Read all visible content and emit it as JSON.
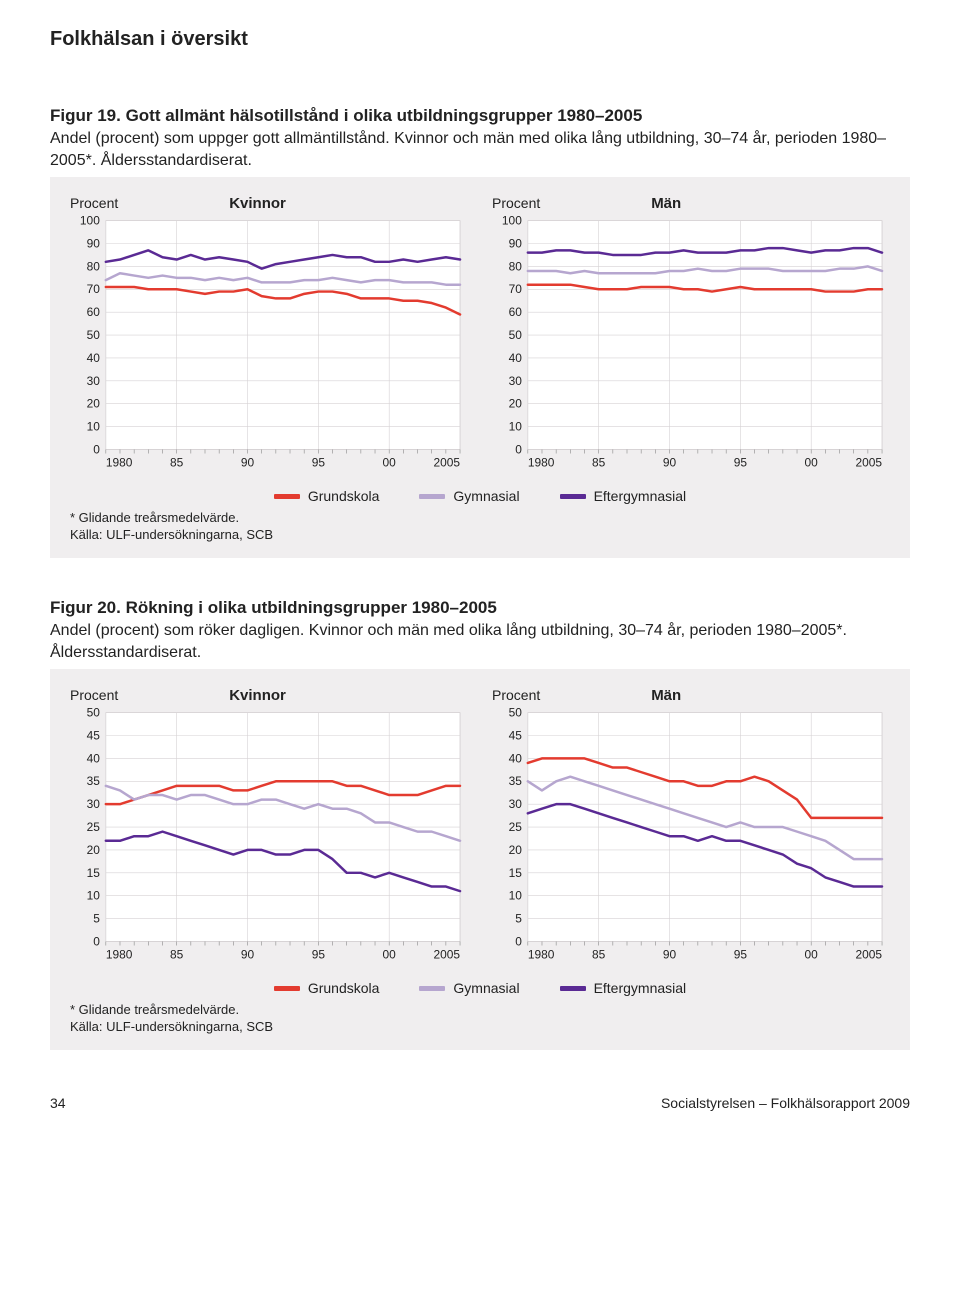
{
  "page": {
    "heading": "Folkhälsan i översikt",
    "footer_page": "34",
    "footer_source": "Socialstyrelsen – Folkhälsorapport 2009"
  },
  "colors": {
    "grundskola": "#e33b2f",
    "gymnasial": "#b6a6cf",
    "eftergymnasial": "#5a2a94",
    "grid": "#d6d2d4",
    "panel_bg": "#f0eeef",
    "plot_bg": "#ffffff",
    "text": "#222222"
  },
  "legend": {
    "items": [
      {
        "label": "Grundskola",
        "color_key": "grundskola"
      },
      {
        "label": "Gymnasial",
        "color_key": "gymnasial"
      },
      {
        "label": "Eftergymnasial",
        "color_key": "eftergymnasial"
      }
    ]
  },
  "figures": [
    {
      "id": "fig19",
      "title": "Figur 19. Gott allmänt hälsotillstånd i olika utbildningsgrupper 1980–2005",
      "desc": "Andel (procent) som uppger gott allmäntillstånd. Kvinnor och män med olika lång utbildning, 30–74 år, perioden 1980–2005*. Åldersstandardiserat.",
      "footnote": "* Glidande treårsmedelvärde.\nKälla: ULF-undersökningarna, SCB",
      "ylabel": "Procent",
      "ylim": [
        0,
        100
      ],
      "ytick_step": 10,
      "x_years": [
        1980,
        1981,
        1982,
        1983,
        1984,
        1985,
        1986,
        1987,
        1988,
        1989,
        1990,
        1991,
        1992,
        1993,
        1994,
        1995,
        1996,
        1997,
        1998,
        1999,
        2000,
        2001,
        2002,
        2003,
        2004,
        2005
      ],
      "x_major_labels": [
        "1980",
        "85",
        "90",
        "95",
        "00",
        "2005"
      ],
      "x_major_positions": [
        1980,
        1985,
        1990,
        1995,
        2000,
        2005
      ],
      "line_width": 2.5,
      "panels": [
        {
          "title": "Kvinnor",
          "series": {
            "grundskola": [
              71,
              71,
              71,
              70,
              70,
              70,
              69,
              68,
              69,
              69,
              70,
              67,
              66,
              66,
              68,
              69,
              69,
              68,
              66,
              66,
              66,
              65,
              65,
              64,
              62,
              59
            ],
            "gymnasial": [
              74,
              77,
              76,
              75,
              76,
              75,
              75,
              74,
              75,
              74,
              75,
              73,
              73,
              73,
              74,
              74,
              75,
              74,
              73,
              74,
              74,
              73,
              73,
              73,
              72,
              72
            ],
            "eftergymnasial": [
              82,
              83,
              85,
              87,
              84,
              83,
              85,
              83,
              84,
              83,
              82,
              79,
              81,
              82,
              83,
              84,
              85,
              84,
              84,
              82,
              82,
              83,
              82,
              83,
              84,
              83
            ]
          }
        },
        {
          "title": "Män",
          "series": {
            "grundskola": [
              72,
              72,
              72,
              72,
              71,
              70,
              70,
              70,
              71,
              71,
              71,
              70,
              70,
              69,
              70,
              71,
              70,
              70,
              70,
              70,
              70,
              69,
              69,
              69,
              70,
              70
            ],
            "gymnasial": [
              78,
              78,
              78,
              77,
              78,
              77,
              77,
              77,
              77,
              77,
              78,
              78,
              79,
              78,
              78,
              79,
              79,
              79,
              78,
              78,
              78,
              78,
              79,
              79,
              80,
              78
            ],
            "eftergymnasial": [
              86,
              86,
              87,
              87,
              86,
              86,
              85,
              85,
              85,
              86,
              86,
              87,
              86,
              86,
              86,
              87,
              87,
              88,
              88,
              87,
              86,
              87,
              87,
              88,
              88,
              86
            ]
          }
        }
      ]
    },
    {
      "id": "fig20",
      "title": "Figur 20. Rökning i olika utbildningsgrupper 1980–2005",
      "desc": "Andel (procent) som röker dagligen. Kvinnor och män  med olika lång utbildning, 30–74 år, perioden 1980–2005*. Åldersstandardiserat.",
      "footnote": "* Glidande treårsmedelvärde.\nKälla: ULF-undersökningarna, SCB",
      "ylabel": "Procent",
      "ylim": [
        0,
        50
      ],
      "ytick_step": 5,
      "x_years": [
        1980,
        1981,
        1982,
        1983,
        1984,
        1985,
        1986,
        1987,
        1988,
        1989,
        1990,
        1991,
        1992,
        1993,
        1994,
        1995,
        1996,
        1997,
        1998,
        1999,
        2000,
        2001,
        2002,
        2003,
        2004,
        2005
      ],
      "x_major_labels": [
        "1980",
        "85",
        "90",
        "95",
        "00",
        "2005"
      ],
      "x_major_positions": [
        1980,
        1985,
        1990,
        1995,
        2000,
        2005
      ],
      "line_width": 2.5,
      "panels": [
        {
          "title": "Kvinnor",
          "series": {
            "grundskola": [
              30,
              30,
              31,
              32,
              33,
              34,
              34,
              34,
              34,
              33,
              33,
              34,
              35,
              35,
              35,
              35,
              35,
              34,
              34,
              33,
              32,
              32,
              32,
              33,
              34,
              34
            ],
            "gymnasial": [
              34,
              33,
              31,
              32,
              32,
              31,
              32,
              32,
              31,
              30,
              30,
              31,
              31,
              30,
              29,
              30,
              29,
              29,
              28,
              26,
              26,
              25,
              24,
              24,
              23,
              22
            ],
            "eftergymnasial": [
              22,
              22,
              23,
              23,
              24,
              23,
              22,
              21,
              20,
              19,
              20,
              20,
              19,
              19,
              20,
              20,
              18,
              15,
              15,
              14,
              15,
              14,
              13,
              12,
              12,
              11
            ]
          }
        },
        {
          "title": "Män",
          "series": {
            "grundskola": [
              39,
              40,
              40,
              40,
              40,
              39,
              38,
              38,
              37,
              36,
              35,
              35,
              34,
              34,
              35,
              35,
              36,
              35,
              33,
              31,
              27,
              27,
              27,
              27,
              27,
              27
            ],
            "gymnasial": [
              35,
              33,
              35,
              36,
              35,
              34,
              33,
              32,
              31,
              30,
              29,
              28,
              27,
              26,
              25,
              26,
              25,
              25,
              25,
              24,
              23,
              22,
              20,
              18,
              18,
              18
            ],
            "eftergymnasial": [
              28,
              29,
              30,
              30,
              29,
              28,
              27,
              26,
              25,
              24,
              23,
              23,
              22,
              23,
              22,
              22,
              21,
              20,
              19,
              17,
              16,
              14,
              13,
              12,
              12,
              12
            ]
          }
        }
      ]
    }
  ]
}
